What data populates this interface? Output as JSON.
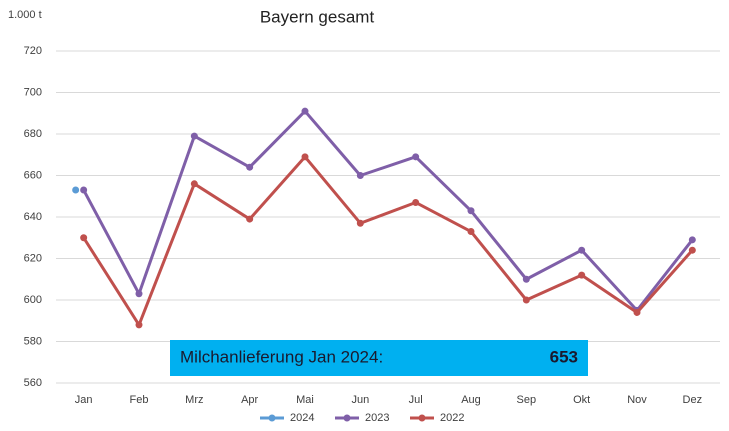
{
  "chart_data": {
    "type": "line",
    "title": "Bayern gesamt",
    "y_unit": "1.000 t",
    "categories": [
      "Jan",
      "Feb",
      "Mrz",
      "Apr",
      "Mai",
      "Jun",
      "Jul",
      "Aug",
      "Sep",
      "Okt",
      "Nov",
      "Dez"
    ],
    "series": [
      {
        "name": "2024",
        "color": "#5b9bd5",
        "values": [
          653,
          null,
          null,
          null,
          null,
          null,
          null,
          null,
          null,
          null,
          null,
          null
        ]
      },
      {
        "name": "2023",
        "color": "#7f5fa8",
        "values": [
          653,
          603,
          679,
          664,
          691,
          660,
          669,
          643,
          610,
          624,
          595,
          629
        ]
      },
      {
        "name": "2022",
        "color": "#c0504d",
        "values": [
          630,
          588,
          656,
          639,
          669,
          637,
          647,
          633,
          600,
          612,
          594,
          624
        ]
      }
    ],
    "ylim": [
      560,
      720
    ],
    "yticks": [
      560,
      580,
      600,
      620,
      640,
      660,
      680,
      700,
      720
    ],
    "grid": true,
    "annotation": {
      "label": "Milchanlieferung Jan 2024:",
      "value": 653,
      "color": "#00b0f0"
    }
  }
}
